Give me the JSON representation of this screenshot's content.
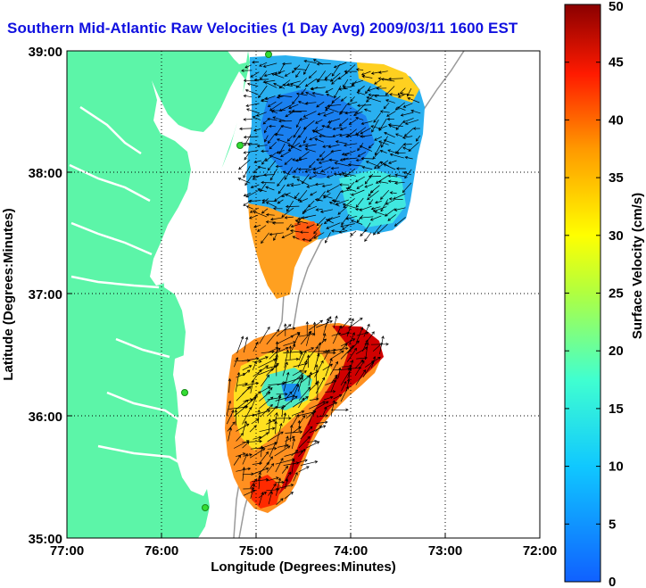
{
  "title": "Southern Mid-Atlantic Raw Velocities (1 Day Avg) 2009/03/11 1600 EST",
  "axes": {
    "xlabel": "Longitude (Degrees:Minutes)",
    "ylabel": "Latitude (Degrees:Minutes)",
    "x_ticks": [
      "77:00",
      "76:00",
      "75:00",
      "74:00",
      "73:00",
      "72:00"
    ],
    "y_ticks": [
      "39:00",
      "38:00",
      "37:00",
      "36:00",
      "35:00"
    ],
    "grid": "dotted"
  },
  "colorbar": {
    "label": "Surface Velocity (cm/s)",
    "ticks": [
      "0",
      "5",
      "10",
      "15",
      "20",
      "25",
      "30",
      "35",
      "40",
      "45",
      "50"
    ],
    "min": 0,
    "max": 50
  },
  "colors": {
    "land": "#5cf5a8",
    "title": "#1010e0",
    "station": "#33dd33"
  }
}
